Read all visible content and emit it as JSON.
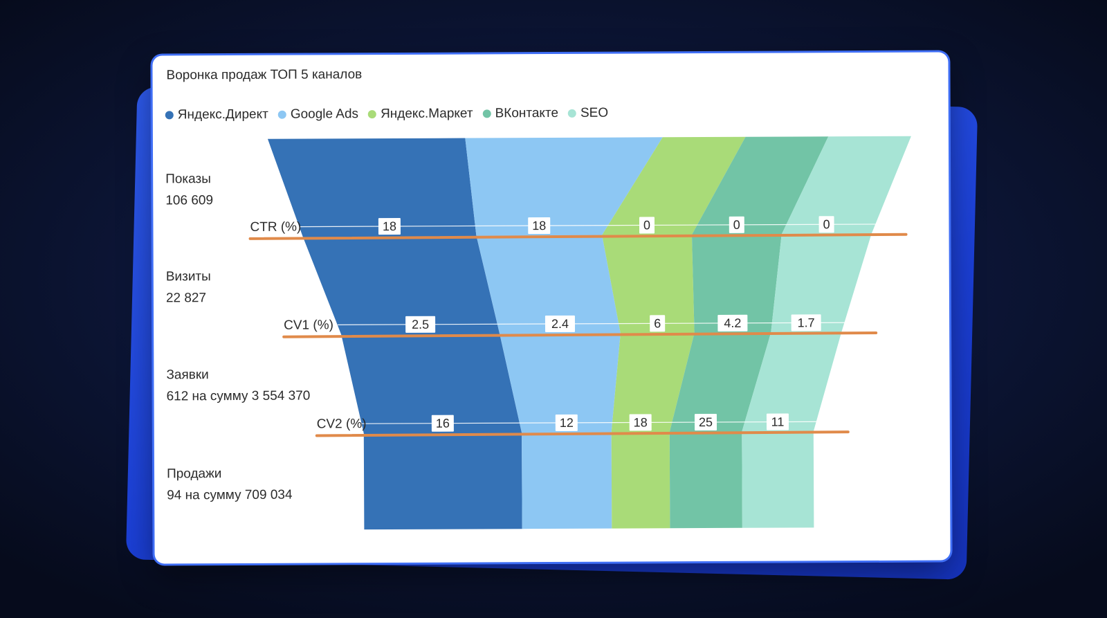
{
  "chart_data": {
    "type": "funnel",
    "title": "Воронка продаж ТОП 5 каналов",
    "series": [
      {
        "name": "Яндекс.Директ",
        "color": "#3572b6"
      },
      {
        "name": "Google Ads",
        "color": "#8dc7f3"
      },
      {
        "name": "Яндекс.Маркет",
        "color": "#a9db78"
      },
      {
        "name": "ВКонтакте",
        "color": "#72c4a6"
      },
      {
        "name": "SEO",
        "color": "#a7e4d5"
      }
    ],
    "stages": [
      {
        "name": "Показы",
        "value": "106 609"
      },
      {
        "name": "Визиты",
        "value": "22 827"
      },
      {
        "name": "Заявки",
        "value": "612 на сумму 3 554 370"
      },
      {
        "name": "Продажи",
        "value": "94 на сумму 709 034"
      }
    ],
    "rates": [
      {
        "label": "CTR (%)",
        "values": [
          18,
          18,
          0,
          0,
          0
        ]
      },
      {
        "label": "CV1 (%)",
        "values": [
          2.5,
          2.4,
          6,
          4.2,
          1.7
        ]
      },
      {
        "label": "CV2 (%)",
        "values": [
          16,
          12,
          18,
          25,
          11
        ]
      }
    ],
    "band_widths": [
      [
        0.31,
        0.31,
        0.13,
        0.13,
        0.13
      ],
      [
        0.29,
        0.21,
        0.15,
        0.15,
        0.15
      ],
      [
        0.236,
        0.18,
        0.11,
        0.114,
        0.105
      ],
      [
        0.236,
        0.134,
        0.087,
        0.108,
        0.107
      ]
    ],
    "rate_line_color": "#e08a4a"
  }
}
